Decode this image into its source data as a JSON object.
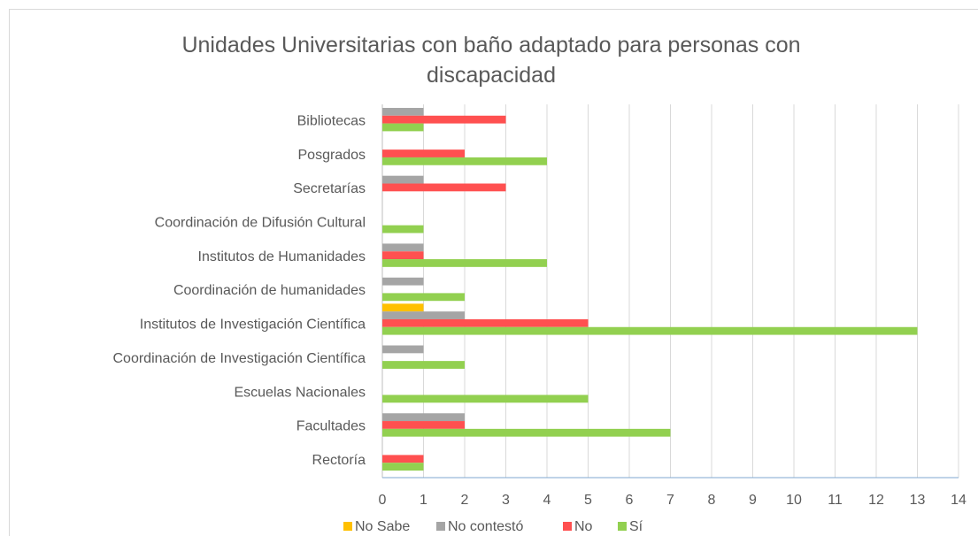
{
  "chart_data": {
    "type": "bar",
    "orientation": "horizontal",
    "title": "Unidades Universitarias con baño adaptado para personas con discapacidad",
    "categories": [
      "Bibliotecas",
      "Posgrados",
      "Secretarías",
      "Coordinación de Difusión Cultural",
      "Institutos de Humanidades",
      "Coordinación de humanidades",
      "Institutos de Investigación Científica",
      "Coordinación de Investigación Científica",
      "Escuelas Nacionales",
      "Facultades",
      "Rectoría"
    ],
    "series": [
      {
        "name": "No Sabe",
        "color": "#ffc000",
        "values": [
          0,
          0,
          0,
          0,
          0,
          0,
          1,
          0,
          0,
          0,
          0
        ]
      },
      {
        "name": "No contestó",
        "color": "#a5a5a5",
        "values": [
          1,
          0,
          1,
          0,
          1,
          1,
          2,
          1,
          0,
          2,
          0
        ]
      },
      {
        "name": "No",
        "color": "#ff5050",
        "values": [
          3,
          2,
          3,
          0,
          1,
          0,
          5,
          0,
          0,
          2,
          1
        ]
      },
      {
        "name": "Sí",
        "color": "#92d050",
        "values": [
          1,
          4,
          0,
          1,
          4,
          2,
          13,
          2,
          5,
          7,
          1
        ]
      }
    ],
    "xlim": [
      0,
      14
    ],
    "xticks": [
      0,
      1,
      2,
      3,
      4,
      5,
      6,
      7,
      8,
      9,
      10,
      11,
      12,
      13,
      14
    ],
    "grid": true,
    "legend": "bottom"
  }
}
